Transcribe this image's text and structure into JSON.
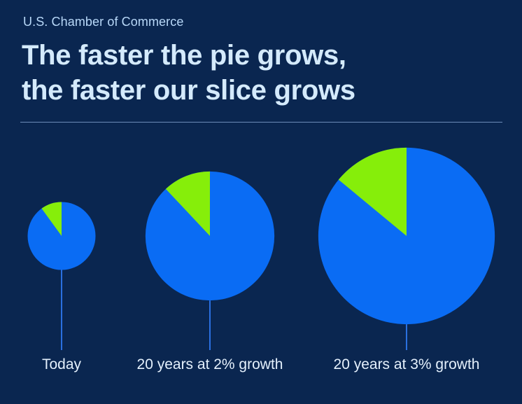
{
  "header": {
    "source": "U.S. Chamber of Commerce",
    "title_line1": "The faster the pie grows,",
    "title_line2": "the faster our slice grows"
  },
  "colors": {
    "background": "#0a2650",
    "pie": "#0a6cf4",
    "slice": "#86ee0a",
    "leader": "#2a70e0"
  },
  "chart_data": {
    "type": "pie",
    "categories": [
      "Today",
      "20 years at 2% growth",
      "20 years at 3% growth"
    ],
    "relative_size": [
      1.0,
      1.9,
      2.6
    ],
    "slice_share": [
      0.1,
      0.12,
      0.14
    ]
  }
}
